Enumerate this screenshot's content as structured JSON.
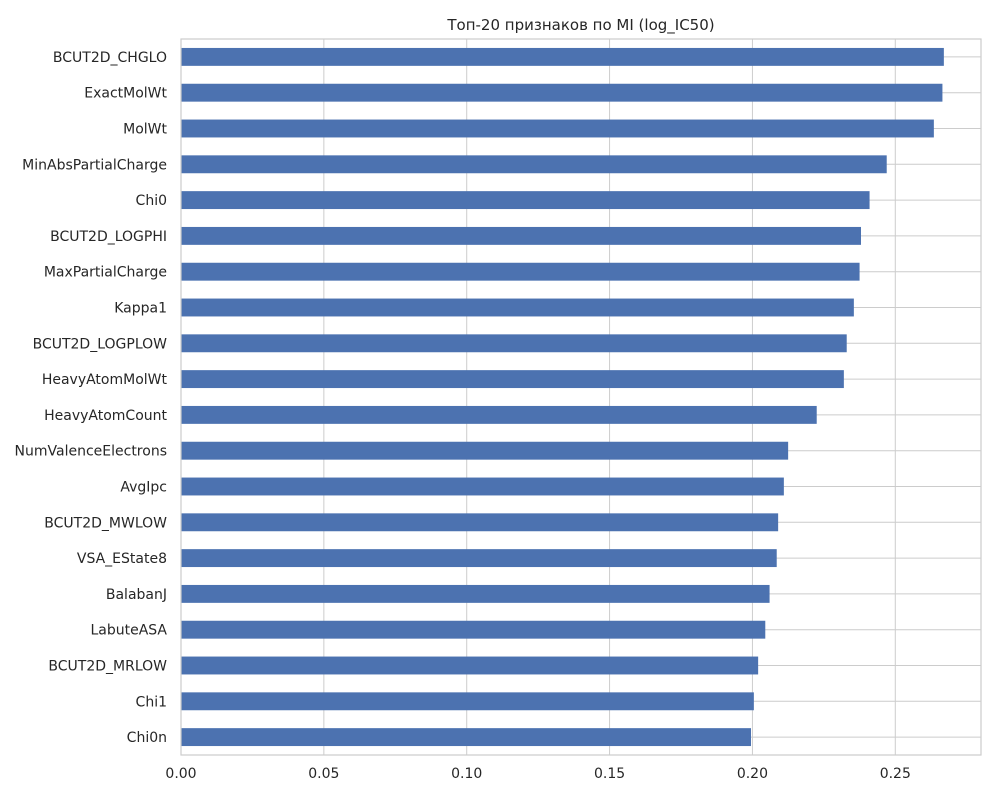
{
  "chart_data": {
    "type": "bar",
    "orientation": "horizontal",
    "title": "Топ-20 признаков по MI (log_IC50)",
    "xlabel": "",
    "ylabel": "",
    "xlim": [
      0,
      0.28
    ],
    "xticks": [
      0.0,
      0.05,
      0.1,
      0.15,
      0.2,
      0.25
    ],
    "xtick_labels": [
      "0.00",
      "0.05",
      "0.10",
      "0.15",
      "0.20",
      "0.25"
    ],
    "grid": true,
    "bar_color": "#4c72b0",
    "grid_color": "#cccccc",
    "categories": [
      "BCUT2D_CHGLO",
      "ExactMolWt",
      "MolWt",
      "MinAbsPartialCharge",
      "Chi0",
      "BCUT2D_LOGPHI",
      "MaxPartialCharge",
      "Kappa1",
      "BCUT2D_LOGPLOW",
      "HeavyAtomMolWt",
      "HeavyAtomCount",
      "NumValenceElectrons",
      "AvgIpc",
      "BCUT2D_MWLOW",
      "VSA_EState8",
      "BalabanJ",
      "LabuteASA",
      "BCUT2D_MRLOW",
      "Chi1",
      "Chi0n"
    ],
    "values": [
      0.267,
      0.2665,
      0.2635,
      0.247,
      0.241,
      0.238,
      0.2375,
      0.2355,
      0.233,
      0.232,
      0.2225,
      0.2125,
      0.211,
      0.209,
      0.2085,
      0.206,
      0.2045,
      0.202,
      0.2005,
      0.1995
    ]
  }
}
